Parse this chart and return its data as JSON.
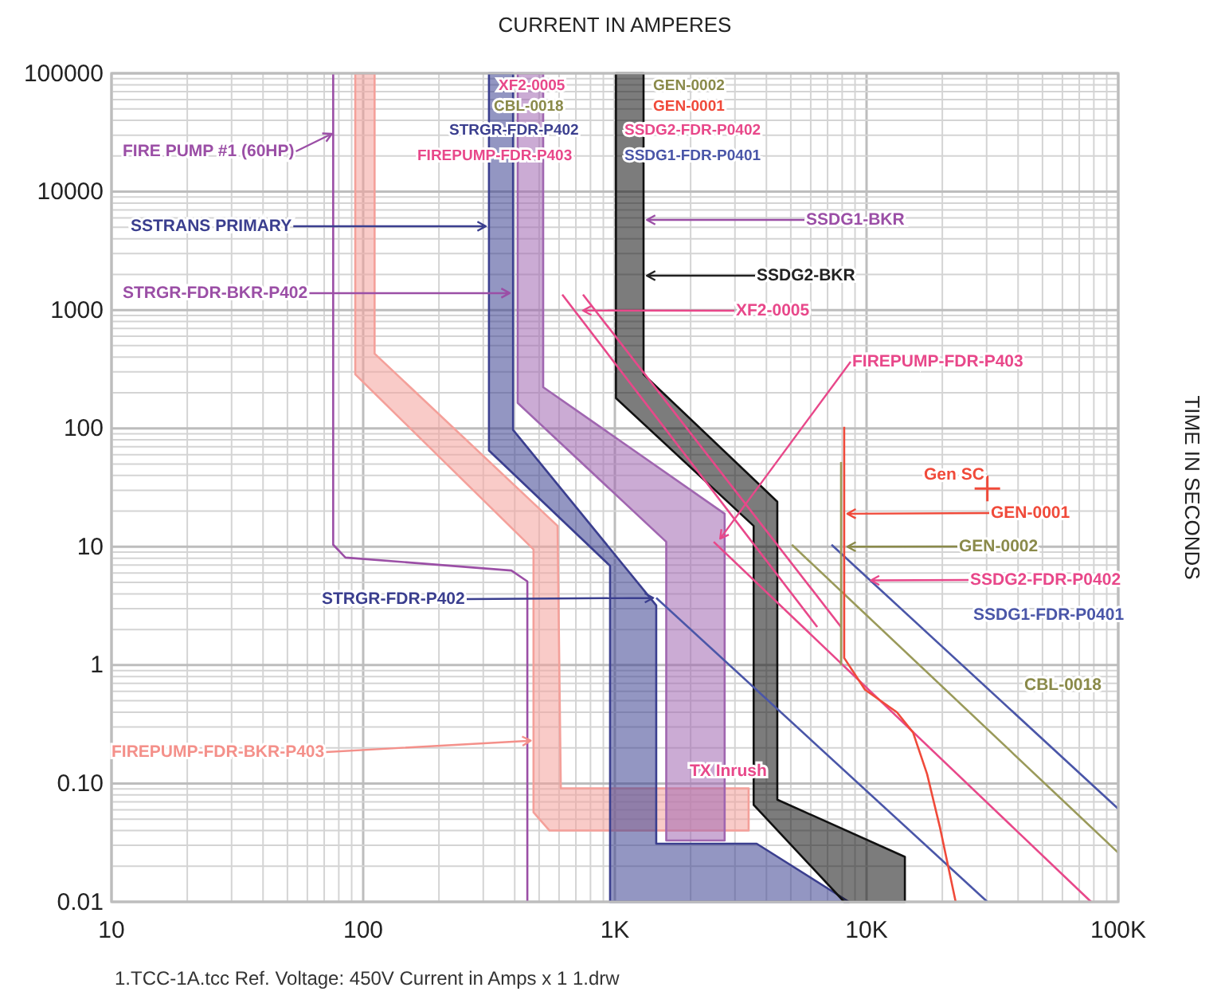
{
  "chart_data": {
    "type": "line",
    "xlabel": "CURRENT IN AMPERES",
    "ylabel": "TIME IN SECONDS",
    "log": "xy",
    "grid": true,
    "xlim": [
      10,
      100000
    ],
    "ylim": [
      0.01,
      100000
    ],
    "xticks": [
      10,
      100,
      {
        "value": 1000,
        "label": "1K"
      },
      {
        "value": 10000,
        "label": "10K"
      },
      {
        "value": 100000,
        "label": "100K"
      }
    ],
    "yticks": [
      {
        "value": 0.01,
        "label": "0.01"
      },
      {
        "value": 0.1,
        "label": "0.10"
      },
      1,
      10,
      100,
      1000,
      10000,
      100000
    ],
    "series": [
      {
        "color": "#9b4fa6",
        "x": [
          76,
          76,
          85,
          388,
          449,
          449
        ],
        "values": [
          100000,
          10.4,
          8.1,
          6.3,
          5.1,
          0.01
        ]
      },
      {
        "type": "area",
        "color": "#f4a09a",
        "x": [
          93,
          93,
          475,
          475,
          550,
          3400,
          3400,
          610,
          592,
          111,
          111,
          93
        ],
        "values": [
          100000,
          286,
          9.5,
          0.057,
          0.04,
          0.04,
          0.091,
          0.091,
          15,
          428,
          100000,
          100000
        ]
      },
      {
        "type": "area",
        "color": "#3b3f8f",
        "x": [
          316,
          316,
          957,
          957,
          8510,
          3660,
          1460,
          1460,
          394,
          394,
          316
        ],
        "values": [
          100000,
          65,
          6.9,
          0.01,
          0.01,
          0.031,
          0.031,
          3.2,
          97,
          100000,
          100000
        ]
      },
      {
        "type": "area",
        "color": "#a066b0",
        "x": [
          411,
          411,
          1600,
          1600,
          2730,
          2730,
          519,
          519,
          411
        ],
        "values": [
          100000,
          164,
          11,
          0.033,
          0.033,
          19,
          223,
          100000,
          100000
        ]
      },
      {
        "type": "area",
        "color": "#111111",
        "x": [
          1010,
          1010,
          3560,
          3560,
          8150,
          14200,
          14200,
          4420,
          4420,
          1300,
          1300,
          1010
        ],
        "values": [
          100000,
          180,
          15,
          0.066,
          0.01,
          0.01,
          0.024,
          0.073,
          24,
          286,
          100000,
          100000
        ]
      },
      {
        "type": "line",
        "color": "#e8488a",
        "x": [
          618,
          6370
        ],
        "values": [
          1350,
          2.1
        ]
      },
      {
        "type": "line",
        "color": "#e8488a",
        "x": [
          747,
          7920
        ],
        "values": [
          1350,
          2.1
        ]
      },
      {
        "type": "line",
        "color": "#e8488a",
        "x": [
          2470,
          78000
        ],
        "values": [
          11,
          0.01
        ]
      },
      {
        "type": "line",
        "color": "#4a56a8",
        "x": [
          7260,
          100000
        ],
        "values": [
          10.4,
          0.061
        ]
      },
      {
        "type": "line",
        "color": "#4a56a8",
        "x": [
          1460,
          30200
        ],
        "values": [
          3.7,
          0.01
        ]
      },
      {
        "type": "line",
        "color": "#9a9a5a",
        "x": [
          5050,
          100000
        ],
        "values": [
          10.4,
          0.026
        ]
      },
      {
        "type": "line",
        "color": "#9a9a5a",
        "x": [
          7920,
          7920
        ],
        "values": [
          52,
          1.0
        ]
      },
      {
        "type": "line",
        "color": "#f04a3a",
        "x": [
          8150,
          8150,
          9860,
          13200,
          15300,
          17400,
          19600,
          22600
        ],
        "values": [
          103,
          1.15,
          0.62,
          0.4,
          0.27,
          0.12,
          0.042,
          0.01
        ]
      },
      {
        "type": "scatter",
        "marker": "cross",
        "color": "#f04a3a",
        "x": [
          30200
        ],
        "values": [
          31
        ]
      }
    ],
    "annotations": [
      {
        "text": "FIRE PUMP #1 (60HP)",
        "x": 75,
        "y": 30800
      },
      {
        "text": "SSTRANS PRIMARY",
        "x": 307,
        "y": 5100
      },
      {
        "text": "STRGR-FDR-BKR-P402",
        "x": 382,
        "y": 1390
      },
      {
        "text": "SSDG1-BKR",
        "x": 1340,
        "y": 5780
      },
      {
        "text": "SSDG2-BKR",
        "x": 1340,
        "y": 1950
      },
      {
        "text": "XF2-0005",
        "x": 747,
        "y": 990
      },
      {
        "text": "FIREPUMP-FDR-P403",
        "x": 2620,
        "y": 11.7
      },
      "Gen SC",
      {
        "text": "GEN-0001",
        "x": 8390,
        "y": 19
      },
      {
        "text": "GEN-0002",
        "x": 8390,
        "y": 10
      },
      {
        "text": "SSDG2-FDR-P0402",
        "x": 10400,
        "y": 5.2
      },
      "SSDG1-FDR-P0401",
      "CBL-0018",
      {
        "text": "STRGR-FDR-P402",
        "x": 1420,
        "y": 3.7
      },
      {
        "text": "FIREPUMP-FDR-BKR-P403",
        "x": 463,
        "y": 0.23
      },
      "TX Inrush",
      "XF2-0005",
      "CBL-0018",
      "GEN-0002",
      "GEN-0001",
      "STRGR-FDR-P402",
      "SSDG2-FDR-P0402",
      "FIREPUMP-FDR-P403",
      "SSDG1-FDR-P0401",
      "1.TCC-1A.tcc Ref. Voltage: 450V   Current in Amps x 1   1.drw"
    ]
  }
}
